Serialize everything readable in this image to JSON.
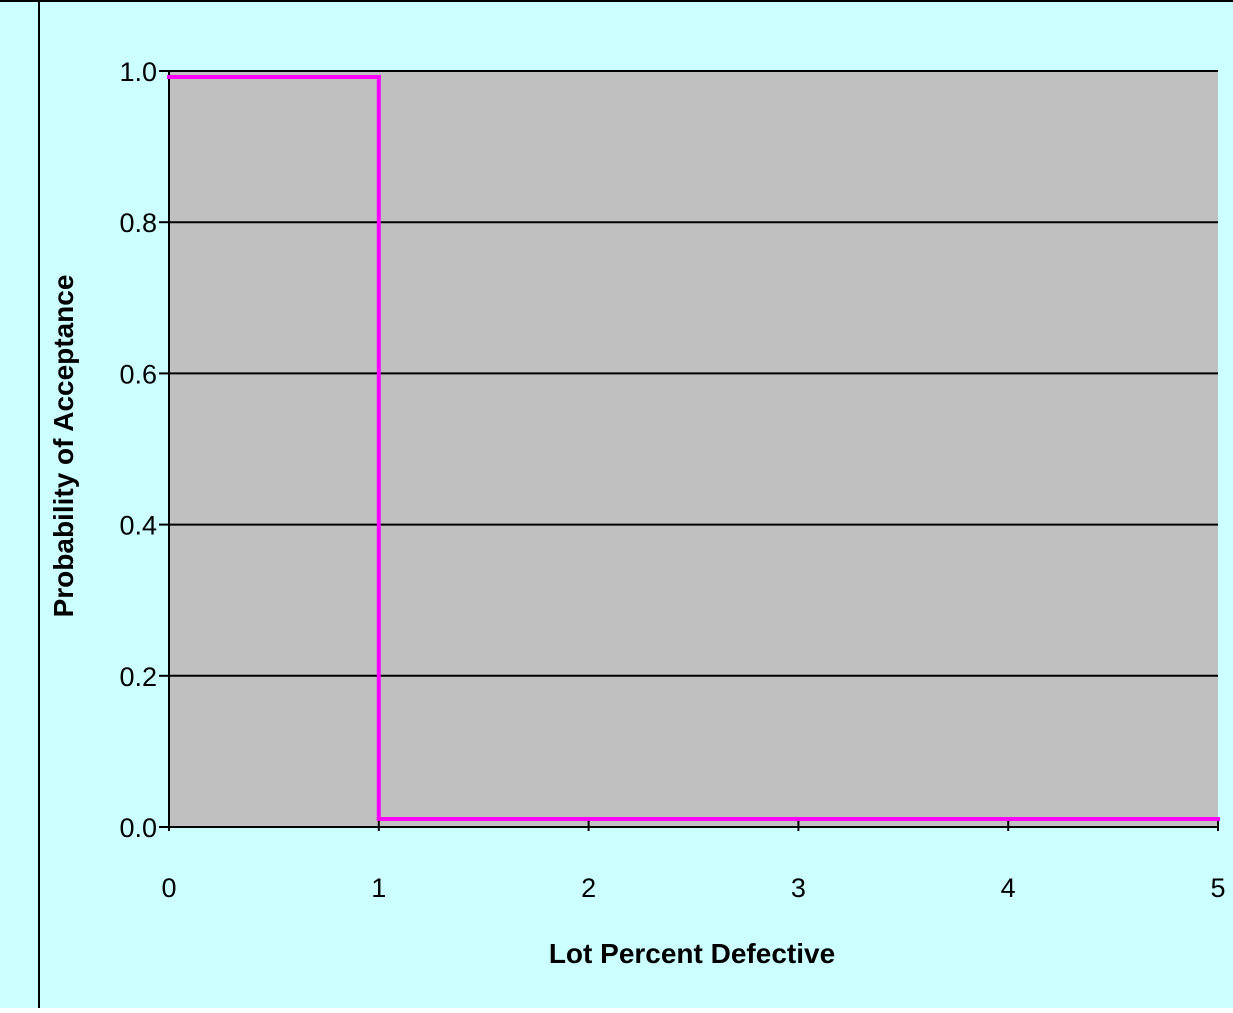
{
  "chart_data": {
    "type": "line",
    "title": "",
    "xlabel": "Lot Percent Defective",
    "ylabel": "Probability of Acceptance",
    "xlim": [
      0,
      5
    ],
    "ylim": [
      0,
      1
    ],
    "x_ticks": [
      "0",
      "1",
      "2",
      "3",
      "4",
      "5"
    ],
    "y_ticks": [
      "0.0",
      "0.2",
      "0.4",
      "0.6",
      "0.8",
      "1.0"
    ],
    "grid": "horizontal",
    "legend": "none",
    "series": [
      {
        "points": [
          [
            0,
            1.0
          ],
          [
            1,
            1.0
          ],
          [
            1,
            0.0
          ],
          [
            5,
            0.0
          ]
        ],
        "color": "#ff00ff",
        "step": true
      }
    ],
    "colors": {
      "background": "#ccffff",
      "plot_area": "#c0c0c0",
      "gridline": "#000000",
      "frame_border": "#000000"
    }
  }
}
